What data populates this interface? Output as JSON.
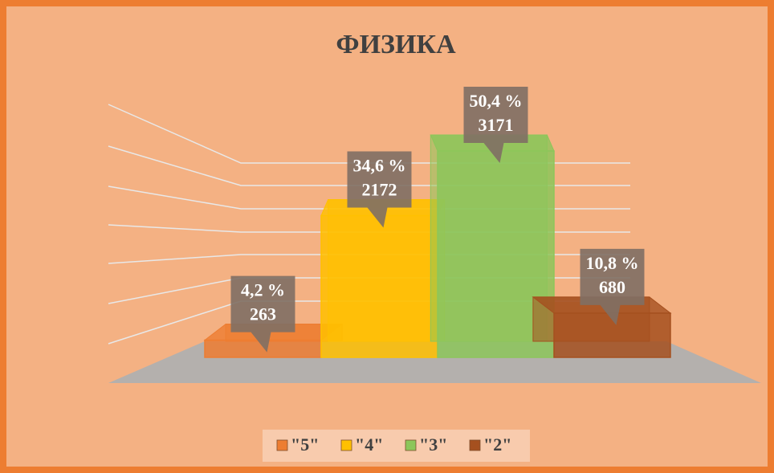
{
  "chart_data": {
    "type": "bar3d",
    "title": "ФИЗИКА",
    "categories": [
      "\"5\"",
      "\"4\"",
      "\"3\"",
      "\"2\""
    ],
    "values": [
      4.2,
      34.6,
      50.4,
      10.8
    ],
    "value_labels": [
      "4,2 %",
      "34,6 %",
      "50,4 %",
      "10,8 %"
    ],
    "counts": [
      263,
      2172,
      3171,
      680
    ],
    "colors": [
      "#ed7d31",
      "#ffc000",
      "#8cc65a",
      "#a5501f"
    ],
    "ylim": [
      0,
      60
    ]
  }
}
